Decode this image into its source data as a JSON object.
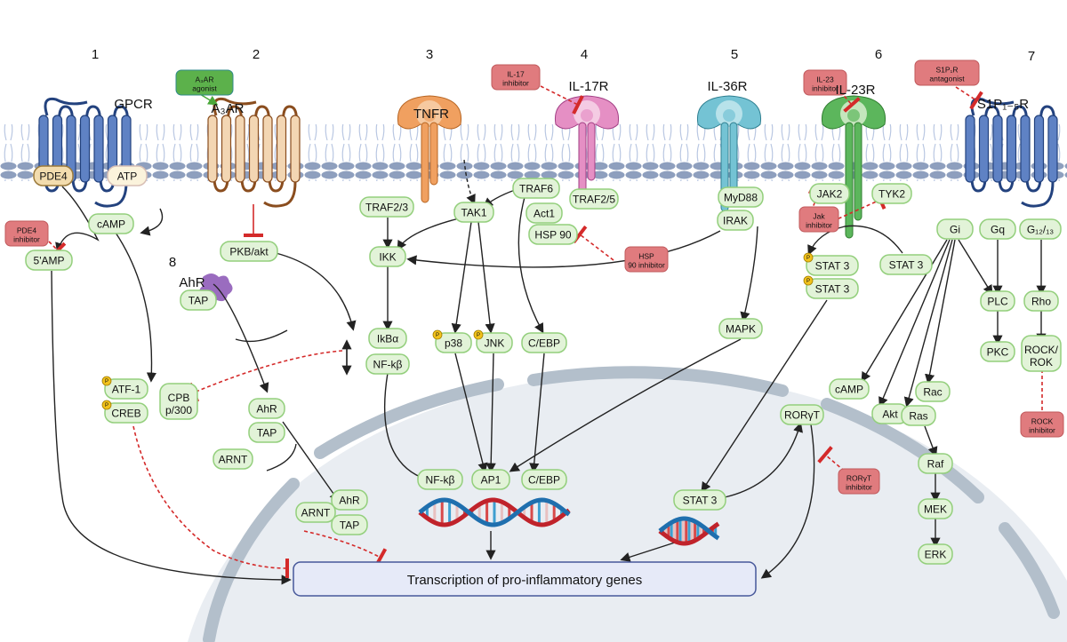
{
  "numbers": [
    "1",
    "2",
    "3",
    "4",
    "5",
    "6",
    "7",
    "8"
  ],
  "receptors": {
    "gpcr": "GPCR",
    "a3ar": "A₃AR",
    "tnfr": "TNFR",
    "il17r": "IL-17R",
    "il36r": "IL-36R",
    "il23r": "IL-23R",
    "s1pr": "S1P₁₋₅R",
    "ahr_ligand": "AhR"
  },
  "nodes": {
    "pde4": "PDE4",
    "atp": "ATP",
    "camp1": "cAMP",
    "amp5": "5'AMP",
    "pkb": "PKB/akt",
    "tap1": "TAP",
    "traf23": "TRAF2/3",
    "tak1": "TAK1",
    "traf6": "TRAF6",
    "traf25": "TRAF2/5",
    "act1": "Act1",
    "hsp90": "HSP 90",
    "ikk": "IKK",
    "myd88": "MyD88",
    "irak": "IRAK",
    "jak2": "JAK2",
    "tyk2": "TYK2",
    "stat3a": "STAT 3",
    "stat3b": "STAT 3",
    "stat3c": "STAT 3",
    "gi": "Gi",
    "gq": "Gq",
    "g1213": "G₁₂/₁₃",
    "plc": "PLC",
    "pkc": "PKC",
    "rho": "Rho",
    "rock": "ROCK/ ROK",
    "ikba": "IkBα",
    "nfkb1": "NF-kβ",
    "p38": "p38",
    "jnk": "JNK",
    "cebp1": "C/EBP",
    "mapk": "MAPK",
    "atf1": "ATF-1",
    "creb": "CREB",
    "cpb": "CPB p/300",
    "ahr1": "AhR",
    "tap2": "TAP",
    "arnt1": "ARNT",
    "camp2": "cAMP",
    "akt": "Akt",
    "rac": "Rac",
    "ras": "Ras",
    "raf": "Raf",
    "mek": "MEK",
    "erk": "ERK",
    "rorgt": "RORγT",
    "nfkb2": "NF-kβ",
    "ap1": "AP1",
    "cebp2": "C/EBP",
    "stat3d": "STAT 3",
    "ahr2": "AhR",
    "arnt2": "ARNT",
    "tap3": "TAP"
  },
  "drugs": {
    "a3ar_agonist": "A₃AR agonist",
    "il17_inhibitor": "IL-17 inhibitor",
    "hsp90_inhibitor": "HSP 90 inhibitor",
    "pde4_inhibitor": "PDE4 inhibitor",
    "il23_inhibitor": "IL-23 inhibitor",
    "jak_inhibitor": "Jak inhibitor",
    "s1p1r_antagonist": "S1P₁R antagonist",
    "rock_inhibitor": "ROCK inhibitor",
    "rorgt_inhibitor": "RORγT inhibitor"
  },
  "phospho_label": "P",
  "output_box": "Transcription of pro-inflammatory genes",
  "colors": {
    "node_fill": "#e2f3d8",
    "node_stroke": "#93cf7c",
    "inhibitor_fill": "#e07b7e",
    "agonist_fill": "#5cb14b",
    "inhibit_line": "#d42a2a",
    "membrane": "#8e9fbe",
    "nucleus": "#e9edf2",
    "envelope": "#b3bfcb",
    "output_fill": "#e6eaf8",
    "output_stroke": "#47589a"
  }
}
